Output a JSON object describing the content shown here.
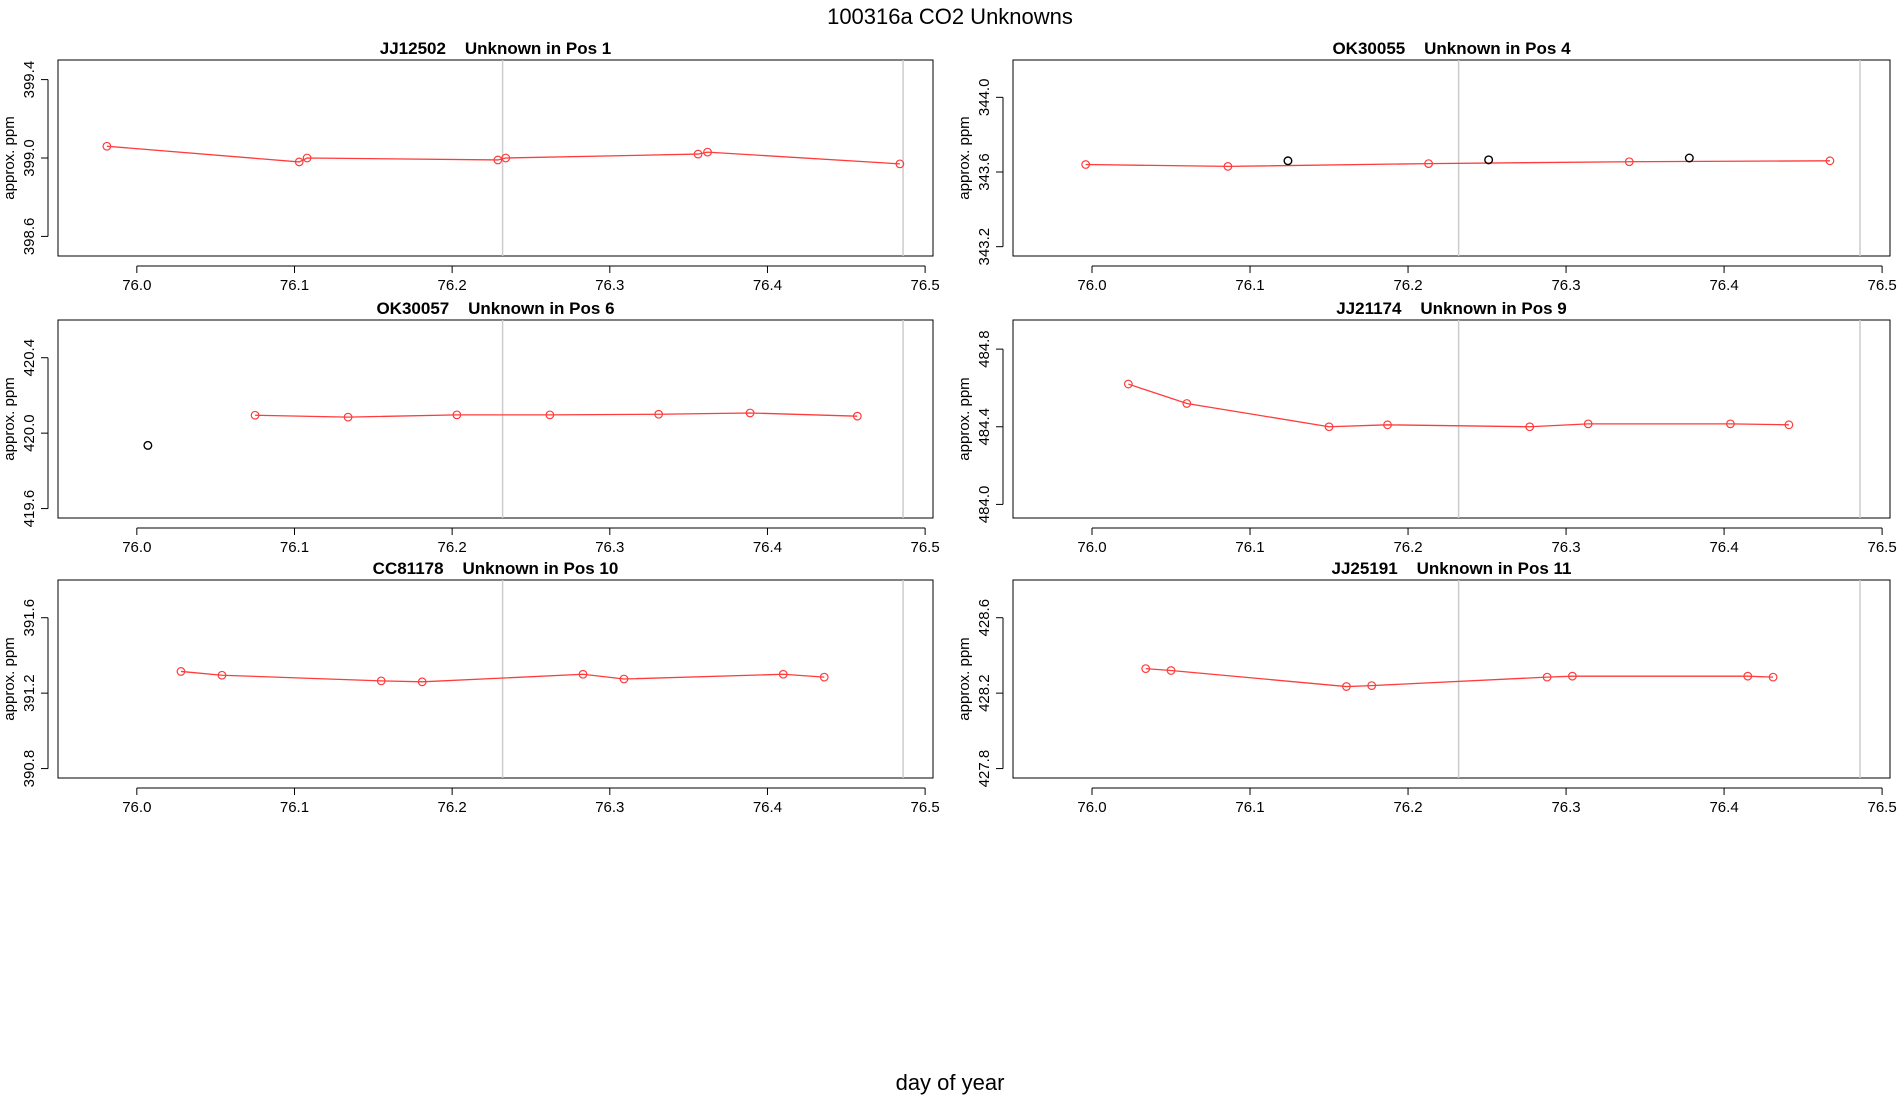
{
  "figure": {
    "title": "100316a  CO2 Unknowns",
    "xlabel": "day of year"
  },
  "colors": {
    "series": "#ff3b3b",
    "flagged": "#000000",
    "axis": "#000000",
    "vline": "#cccccc"
  },
  "chart_data": [
    {
      "type": "line",
      "title": "JJ12502    Unknown in Pos 1",
      "ylabel": "approx. ppm",
      "xlim": [
        75.95,
        76.505
      ],
      "ylim": [
        398.5,
        399.5
      ],
      "xticks": [
        "76.0",
        "76.1",
        "76.2",
        "76.3",
        "76.4",
        "76.5"
      ],
      "yticks": [
        "398.6",
        "399.0",
        "399.4"
      ],
      "vlines": [
        76.232,
        76.486
      ],
      "series": [
        {
          "x": [
            75.981,
            76.103,
            76.108,
            76.229,
            76.234,
            76.356,
            76.362,
            76.484
          ],
          "y": [
            399.06,
            398.98,
            399.0,
            398.99,
            399.0,
            399.02,
            399.03,
            398.97
          ]
        }
      ],
      "flagged": []
    },
    {
      "type": "line",
      "title": "OK30055    Unknown in Pos 4",
      "ylabel": "approx. ppm",
      "xlim": [
        75.95,
        76.505
      ],
      "ylim": [
        343.15,
        344.2
      ],
      "xticks": [
        "76.0",
        "76.1",
        "76.2",
        "76.3",
        "76.4",
        "76.5"
      ],
      "yticks": [
        "343.2",
        "343.6",
        "344.0"
      ],
      "vlines": [
        76.232,
        76.486
      ],
      "series": [
        {
          "x": [
            75.996,
            76.086,
            76.213,
            76.34,
            76.467
          ],
          "y": [
            343.64,
            343.63,
            343.645,
            343.655,
            343.66
          ]
        }
      ],
      "flagged": [
        {
          "x": [
            76.124,
            76.251,
            76.378
          ],
          "y": [
            343.66,
            343.665,
            343.675
          ]
        }
      ]
    },
    {
      "type": "line",
      "title": "OK30057    Unknown in Pos 6",
      "ylabel": "approx. ppm",
      "xlim": [
        75.95,
        76.505
      ],
      "ylim": [
        419.55,
        420.6
      ],
      "xticks": [
        "76.0",
        "76.1",
        "76.2",
        "76.3",
        "76.4",
        "76.5"
      ],
      "yticks": [
        "419.6",
        "420.0",
        "420.4"
      ],
      "vlines": [
        76.232,
        76.486
      ],
      "series": [
        {
          "x": [
            76.075,
            76.134,
            76.203,
            76.262,
            76.331,
            76.389,
            76.457
          ],
          "y": [
            420.095,
            420.085,
            420.097,
            420.097,
            420.1,
            420.107,
            420.09
          ]
        }
      ],
      "flagged": [
        {
          "x": [
            76.007
          ],
          "y": [
            419.935
          ]
        }
      ]
    },
    {
      "type": "line",
      "title": "JJ21174    Unknown in Pos 9",
      "ylabel": "approx. ppm",
      "xlim": [
        75.95,
        76.505
      ],
      "ylim": [
        483.93,
        484.95
      ],
      "xticks": [
        "76.0",
        "76.1",
        "76.2",
        "76.3",
        "76.4",
        "76.5"
      ],
      "yticks": [
        "484.0",
        "484.4",
        "484.8"
      ],
      "vlines": [
        76.232,
        76.486
      ],
      "series": [
        {
          "x": [
            76.023,
            76.06,
            76.15,
            76.187,
            76.277,
            76.314,
            76.404,
            76.441
          ],
          "y": [
            484.62,
            484.52,
            484.4,
            484.41,
            484.4,
            484.415,
            484.415,
            484.41
          ]
        }
      ],
      "flagged": []
    },
    {
      "type": "line",
      "title": "CC81178    Unknown in Pos 10",
      "ylabel": "approx. ppm",
      "xlim": [
        75.95,
        76.505
      ],
      "ylim": [
        390.75,
        391.8
      ],
      "xticks": [
        "76.0",
        "76.1",
        "76.2",
        "76.3",
        "76.4",
        "76.5"
      ],
      "yticks": [
        "390.8",
        "391.2",
        "391.6"
      ],
      "vlines": [
        76.232,
        76.486
      ],
      "series": [
        {
          "x": [
            76.028,
            76.054,
            76.155,
            76.181,
            76.283,
            76.309,
            76.41,
            76.436
          ],
          "y": [
            391.315,
            391.295,
            391.265,
            391.26,
            391.3,
            391.275,
            391.3,
            391.285
          ]
        }
      ],
      "flagged": []
    },
    {
      "type": "line",
      "title": "JJ25191    Unknown in Pos 11",
      "ylabel": "approx. ppm",
      "xlim": [
        75.95,
        76.505
      ],
      "ylim": [
        427.75,
        428.8
      ],
      "xticks": [
        "76.0",
        "76.1",
        "76.2",
        "76.3",
        "76.4",
        "76.5"
      ],
      "yticks": [
        "427.8",
        "428.2",
        "428.6"
      ],
      "vlines": [
        76.232,
        76.486
      ],
      "series": [
        {
          "x": [
            76.034,
            76.05,
            76.161,
            76.177,
            76.288,
            76.304,
            76.415,
            76.431
          ],
          "y": [
            428.33,
            428.32,
            428.235,
            428.24,
            428.285,
            428.29,
            428.29,
            428.285
          ]
        }
      ],
      "flagged": []
    }
  ]
}
